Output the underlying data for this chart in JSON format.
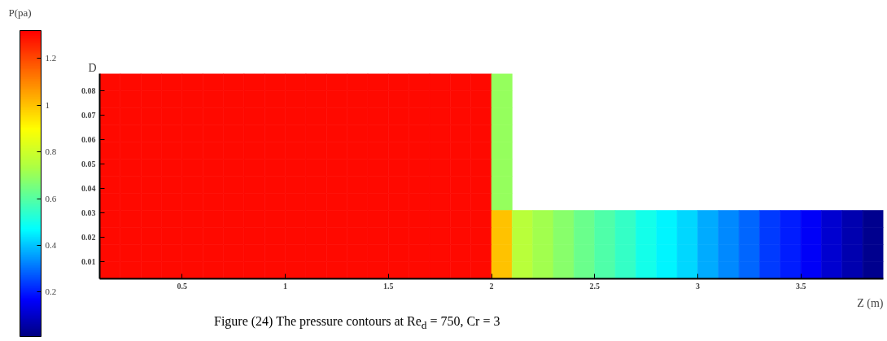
{
  "chart_data": {
    "type": "heatmap",
    "annotations": [
      "Figure (24) The pressure contours at Re$_{d}$ = 750, Cr = 3"
    ],
    "xlabel": "Z (m)",
    "ylabel": "D",
    "clabel": "P(pa)",
    "x": [
      0.15,
      0.25,
      0.35,
      0.45,
      0.55,
      0.65,
      0.75,
      0.85,
      0.95,
      1.05,
      1.15,
      1.25,
      1.35,
      1.45,
      1.55,
      1.65,
      1.75,
      1.85,
      1.95,
      2.05,
      2.15,
      2.25,
      2.35,
      2.45,
      2.55,
      2.65,
      2.75,
      2.85,
      2.95,
      3.05,
      3.15,
      3.25,
      3.35,
      3.45,
      3.55,
      3.65,
      3.75,
      3.85
    ],
    "cells": [
      [
        1.3,
        1.3,
        1.3,
        1.3,
        1.3,
        1.3,
        1.3,
        1.3,
        1.3,
        1.3,
        1.3,
        1.3,
        1.3,
        1.3,
        1.3,
        1.3,
        1.3,
        1.3,
        1.3,
        0.7,
        null,
        null,
        null,
        null,
        null,
        null,
        null,
        null,
        null,
        null,
        null,
        null,
        null,
        null,
        null,
        null,
        null,
        null
      ],
      [
        1.3,
        1.3,
        1.3,
        1.3,
        1.3,
        1.3,
        1.3,
        1.3,
        1.3,
        1.3,
        1.3,
        1.3,
        1.3,
        1.3,
        1.3,
        1.3,
        1.3,
        1.3,
        1.3,
        0.7,
        null,
        null,
        null,
        null,
        null,
        null,
        null,
        null,
        null,
        null,
        null,
        null,
        null,
        null,
        null,
        null,
        null,
        null
      ],
      [
        1.3,
        1.3,
        1.3,
        1.3,
        1.3,
        1.3,
        1.3,
        1.3,
        1.3,
        1.3,
        1.3,
        1.3,
        1.3,
        1.3,
        1.3,
        1.3,
        1.3,
        1.3,
        1.3,
        0.7,
        null,
        null,
        null,
        null,
        null,
        null,
        null,
        null,
        null,
        null,
        null,
        null,
        null,
        null,
        null,
        null,
        null,
        null
      ],
      [
        1.3,
        1.3,
        1.3,
        1.3,
        1.3,
        1.3,
        1.3,
        1.3,
        1.3,
        1.3,
        1.3,
        1.3,
        1.3,
        1.3,
        1.3,
        1.3,
        1.3,
        1.3,
        1.3,
        0.7,
        null,
        null,
        null,
        null,
        null,
        null,
        null,
        null,
        null,
        null,
        null,
        null,
        null,
        null,
        null,
        null,
        null,
        null
      ],
      [
        1.3,
        1.3,
        1.3,
        1.3,
        1.3,
        1.3,
        1.3,
        1.3,
        1.3,
        1.3,
        1.3,
        1.3,
        1.3,
        1.3,
        1.3,
        1.3,
        1.3,
        1.3,
        1.3,
        0.7,
        null,
        null,
        null,
        null,
        null,
        null,
        null,
        null,
        null,
        null,
        null,
        null,
        null,
        null,
        null,
        null,
        null,
        null
      ],
      [
        1.3,
        1.3,
        1.3,
        1.3,
        1.3,
        1.3,
        1.3,
        1.3,
        1.3,
        1.3,
        1.3,
        1.3,
        1.3,
        1.3,
        1.3,
        1.3,
        1.3,
        1.3,
        1.3,
        0.7,
        null,
        null,
        null,
        null,
        null,
        null,
        null,
        null,
        null,
        null,
        null,
        null,
        null,
        null,
        null,
        null,
        null,
        null
      ],
      [
        1.3,
        1.3,
        1.3,
        1.3,
        1.3,
        1.3,
        1.3,
        1.3,
        1.3,
        1.3,
        1.3,
        1.3,
        1.3,
        1.3,
        1.3,
        1.3,
        1.3,
        1.3,
        1.3,
        0.7,
        null,
        null,
        null,
        null,
        null,
        null,
        null,
        null,
        null,
        null,
        null,
        null,
        null,
        null,
        null,
        null,
        null,
        null
      ],
      [
        1.3,
        1.3,
        1.3,
        1.3,
        1.3,
        1.3,
        1.3,
        1.3,
        1.3,
        1.3,
        1.3,
        1.3,
        1.3,
        1.3,
        1.3,
        1.3,
        1.3,
        1.3,
        1.3,
        0.7,
        null,
        null,
        null,
        null,
        null,
        null,
        null,
        null,
        null,
        null,
        null,
        null,
        null,
        null,
        null,
        null,
        null,
        null
      ],
      [
        1.3,
        1.3,
        1.3,
        1.3,
        1.3,
        1.3,
        1.3,
        1.3,
        1.3,
        1.3,
        1.3,
        1.3,
        1.3,
        1.3,
        1.3,
        1.3,
        1.3,
        1.3,
        1.3,
        1.0,
        0.76,
        0.72,
        0.68,
        0.63,
        0.59,
        0.55,
        0.5,
        0.46,
        0.42,
        0.37,
        0.33,
        0.29,
        0.24,
        0.2,
        0.16,
        0.11,
        0.07,
        0.03
      ],
      [
        1.3,
        1.3,
        1.3,
        1.3,
        1.3,
        1.3,
        1.3,
        1.3,
        1.3,
        1.3,
        1.3,
        1.3,
        1.3,
        1.3,
        1.3,
        1.3,
        1.3,
        1.3,
        1.3,
        1.0,
        0.76,
        0.72,
        0.68,
        0.63,
        0.59,
        0.55,
        0.5,
        0.46,
        0.42,
        0.37,
        0.33,
        0.29,
        0.24,
        0.2,
        0.16,
        0.11,
        0.07,
        0.03
      ],
      [
        1.3,
        1.3,
        1.3,
        1.3,
        1.3,
        1.3,
        1.3,
        1.3,
        1.3,
        1.3,
        1.3,
        1.3,
        1.3,
        1.3,
        1.3,
        1.3,
        1.3,
        1.3,
        1.3,
        1.0,
        0.76,
        0.72,
        0.68,
        0.63,
        0.59,
        0.55,
        0.5,
        0.46,
        0.42,
        0.37,
        0.33,
        0.29,
        0.24,
        0.2,
        0.16,
        0.11,
        0.07,
        0.03
      ],
      [
        1.3,
        1.3,
        1.3,
        1.3,
        1.3,
        1.3,
        1.3,
        1.3,
        1.3,
        1.3,
        1.3,
        1.3,
        1.3,
        1.3,
        1.3,
        1.3,
        1.3,
        1.3,
        1.3,
        1.0,
        0.76,
        0.72,
        0.68,
        0.63,
        0.59,
        0.55,
        0.5,
        0.46,
        0.42,
        0.37,
        0.33,
        0.29,
        0.24,
        0.2,
        0.16,
        0.11,
        0.07,
        0.03
      ]
    ],
    "xlim": [
      0.1,
      3.9
    ],
    "xticks": [
      0.5,
      1,
      1.5,
      2,
      2.5,
      3,
      3.5
    ],
    "ylim": [
      0.003,
      0.087
    ],
    "yticks": [
      0.01,
      0.02,
      0.03,
      0.04,
      0.05,
      0.06,
      0.07,
      0.08
    ],
    "clim": [
      0.01,
      1.32
    ],
    "cticks": [
      0.2,
      0.4,
      0.6,
      0.8,
      1,
      1.2
    ]
  }
}
